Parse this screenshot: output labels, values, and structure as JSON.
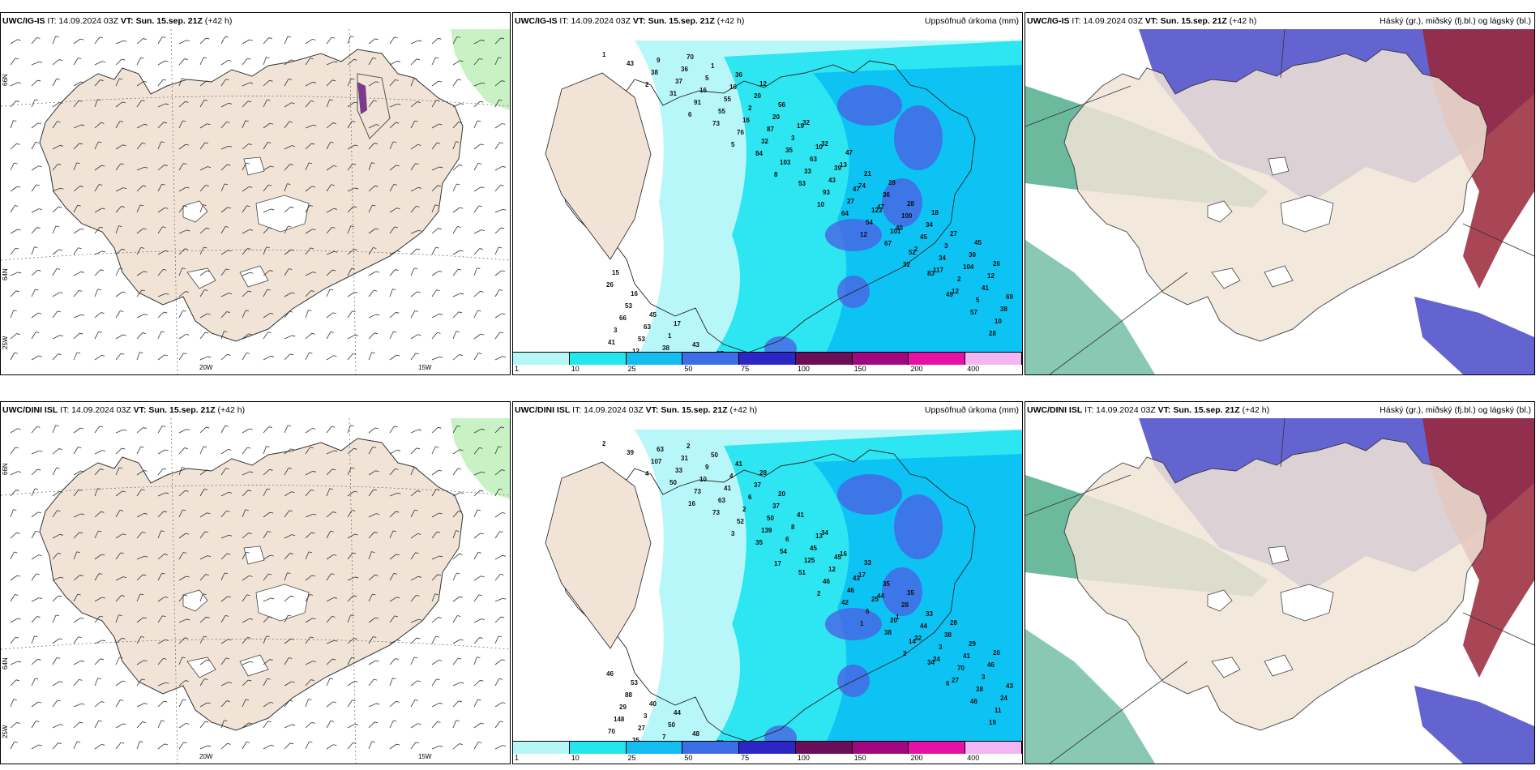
{
  "rows": [
    {
      "model": "UWC/IG-IS",
      "panels": [
        {
          "id": "wind",
          "header_bold": "UWC/IG-IS",
          "header_it": " IT: 14.09.2024 03Z ",
          "header_vt_bold": "VT: Sun. 15.sep. 21Z",
          "header_tail": " (+42 h)",
          "header_right": ""
        },
        {
          "id": "precip",
          "header_bold": "UWC/IG-IS",
          "header_it": " IT: 14.09.2024 03Z ",
          "header_vt_bold": "VT: Sun. 15.sep. 21Z",
          "header_tail": " (+42 h)",
          "header_right": "Uppsöfnuð úrkoma (mm)"
        },
        {
          "id": "cloud",
          "header_bold": "UWC/IG-IS",
          "header_it": " IT: 14.09.2024 03Z ",
          "header_vt_bold": "VT: Sun. 15.sep. 21Z",
          "header_tail": " (+42 h)",
          "header_right": "Háský (gr.), miðský (fj.bl.) og lágský (bl.)"
        }
      ],
      "precip_values": [
        "1",
        "2",
        "6",
        "5",
        "8",
        "10",
        "12",
        "32",
        "49",
        "28",
        "43",
        "31",
        "73",
        "84",
        "53",
        "64",
        "67",
        "83",
        "57",
        "41",
        "38",
        "91",
        "76",
        "103",
        "93",
        "54",
        "52",
        "12",
        "10",
        "12",
        "37",
        "55",
        "32",
        "33",
        "27",
        "101",
        "117",
        "5",
        "3",
        "9",
        "16",
        "16",
        "35",
        "43",
        "123",
        "2",
        "2",
        "38",
        "53",
        "36",
        "55",
        "87",
        "63",
        "47",
        "40",
        "34",
        "41",
        "66",
        "38",
        "5",
        "2",
        "3",
        "39",
        "47",
        "45",
        "104",
        "69",
        "63",
        "70",
        "16",
        "20",
        "10",
        "74",
        "100",
        "3",
        "12",
        "53",
        "1",
        "1",
        "20",
        "19",
        "13",
        "36",
        "34",
        "30",
        "26",
        "45",
        "43",
        "36",
        "56",
        "32",
        "21",
        "28",
        "27",
        "26",
        "16",
        "17",
        "27",
        "12",
        "32",
        "47",
        "28",
        "18",
        "45",
        "15"
      ],
      "legend_labels": [
        "1",
        "10",
        "25",
        "50",
        "75",
        "100",
        "150",
        "200",
        "400"
      ],
      "lon_labels": [
        "20W",
        "15W"
      ],
      "lat_labels": [
        "66N",
        "64N",
        "25W"
      ]
    },
    {
      "model": "UWC/DINI ISL",
      "panels": [
        {
          "id": "wind",
          "header_bold": "UWC/DINI ISL",
          "header_it": " IT: 14.09.2024 03Z ",
          "header_vt_bold": "VT: Sun. 15.sep. 21Z",
          "header_tail": " (+42 h)",
          "header_right": ""
        },
        {
          "id": "precip",
          "header_bold": "UWC/DINI ISL",
          "header_it": " IT: 14.09.2024 03Z ",
          "header_vt_bold": "VT: Sun. 15.sep. 21Z",
          "header_tail": " (+42 h)",
          "header_right": "Uppsöfnuð úrkoma (mm)"
        },
        {
          "id": "cloud",
          "header_bold": "UWC/DINI ISL",
          "header_it": " IT: 14.09.2024 03Z ",
          "header_vt_bold": "VT: Sun. 15.sep. 21Z",
          "header_tail": " (+42 h)",
          "header_right": "Háský (gr.), miðský (fj.bl.) og lágský (bl.)"
        }
      ],
      "precip_values": [
        "2",
        "4",
        "16",
        "3",
        "17",
        "2",
        "1",
        "2",
        "6",
        "19",
        "39",
        "50",
        "73",
        "35",
        "51",
        "42",
        "38",
        "34",
        "46",
        "70",
        "107",
        "73",
        "52",
        "54",
        "46",
        "6",
        "14",
        "27",
        "11",
        "35",
        "33",
        "63",
        "139",
        "125",
        "46",
        "20",
        "24",
        "38",
        "148",
        "63",
        "10",
        "2",
        "6",
        "12",
        "25",
        "32",
        "70",
        "24",
        "27",
        "31",
        "41",
        "50",
        "45",
        "43",
        "1",
        "3",
        "3",
        "29",
        "7",
        "9",
        "6",
        "8",
        "45",
        "44",
        "44",
        "41",
        "43",
        "3",
        "2",
        "4",
        "37",
        "13",
        "17",
        "28",
        "38",
        "46",
        "88",
        "50",
        "50",
        "37",
        "41",
        "16",
        "35",
        "33",
        "29",
        "46",
        "40",
        "48",
        "41",
        "20",
        "34",
        "33",
        "35",
        "28",
        "20",
        "53",
        "44",
        "21",
        "28"
      ],
      "legend_labels": [
        "1",
        "10",
        "25",
        "50",
        "75",
        "100",
        "150",
        "200",
        "400"
      ],
      "lon_labels": [
        "20W",
        "15W"
      ],
      "lat_labels": [
        "66N",
        "64N",
        "25W"
      ]
    }
  ],
  "legend_colors": [
    "#b5f7f7",
    "#22e8ee",
    "#14bdf0",
    "#3d6ee8",
    "#2c26c4",
    "#6a0e5a",
    "#a1087f",
    "#e610a6",
    "#f4b6f2"
  ],
  "colors": {
    "land": "#f1e4d6",
    "wind_green": "#c8f2c3",
    "precip_light": "#b8f7f9",
    "precip_mid": "#2ee6f1",
    "precip_dark": "#0cc3f4",
    "precip_deep": "#4a63e2",
    "cloud_mid": "#6464d0",
    "cloud_low": "#3aa37e",
    "cloud_high": "#9a2637"
  }
}
